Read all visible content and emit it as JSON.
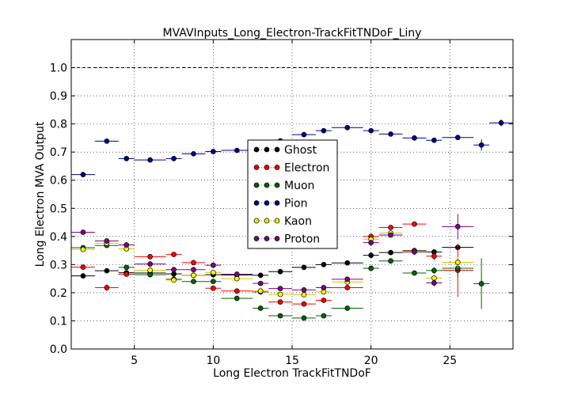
{
  "chart_data": {
    "type": "scatter",
    "title": "MVAVInputs_Long_Electron-TrackFitTNDoF_Liny",
    "xlabel": "Long Electron TrackFitTNDoF",
    "ylabel": "Long Electron MVA Output",
    "xlim": [
      1.0,
      29.0
    ],
    "ylim": [
      0.0,
      1.1
    ],
    "xticks": [
      5,
      10,
      15,
      20,
      25
    ],
    "xtick_labels": [
      "5",
      "10",
      "15",
      "20",
      "25"
    ],
    "yticks": [
      0.0,
      0.1,
      0.2,
      0.3,
      0.4,
      0.5,
      0.6,
      0.7,
      0.8,
      0.9,
      1.0
    ],
    "ytick_labels": [
      "0.0",
      "0.1",
      "0.2",
      "0.3",
      "0.4",
      "0.5",
      "0.6",
      "0.7",
      "0.8",
      "0.9",
      "1.0"
    ],
    "grid": true,
    "reference_line": 1.0,
    "legend_position": "center",
    "series": [
      {
        "name": "Ghost",
        "color": "#000000",
        "points": [
          {
            "x": 1.75,
            "xerr": 0.75,
            "y": 0.26,
            "yerr": 0.004
          },
          {
            "x": 3.25,
            "xerr": 0.75,
            "y": 0.278,
            "yerr": 0.004
          },
          {
            "x": 4.5,
            "xerr": 0.5,
            "y": 0.271,
            "yerr": 0.004
          },
          {
            "x": 6.0,
            "xerr": 1.0,
            "y": 0.27,
            "yerr": 0.004
          },
          {
            "x": 7.5,
            "xerr": 0.5,
            "y": 0.267,
            "yerr": 0.004
          },
          {
            "x": 8.75,
            "xerr": 0.75,
            "y": 0.262,
            "yerr": 0.004
          },
          {
            "x": 10.0,
            "xerr": 0.5,
            "y": 0.264,
            "yerr": 0.004
          },
          {
            "x": 11.5,
            "xerr": 1.0,
            "y": 0.263,
            "yerr": 0.004
          },
          {
            "x": 13.0,
            "xerr": 0.5,
            "y": 0.262,
            "yerr": 0.004
          },
          {
            "x": 14.25,
            "xerr": 0.75,
            "y": 0.275,
            "yerr": 0.004
          },
          {
            "x": 15.75,
            "xerr": 0.75,
            "y": 0.29,
            "yerr": 0.004
          },
          {
            "x": 17.0,
            "xerr": 0.5,
            "y": 0.3,
            "yerr": 0.004
          },
          {
            "x": 18.5,
            "xerr": 1.0,
            "y": 0.306,
            "yerr": 0.005
          },
          {
            "x": 20.0,
            "xerr": 0.5,
            "y": 0.333,
            "yerr": 0.005
          },
          {
            "x": 21.25,
            "xerr": 0.75,
            "y": 0.343,
            "yerr": 0.006
          },
          {
            "x": 22.75,
            "xerr": 0.75,
            "y": 0.35,
            "yerr": 0.006
          },
          {
            "x": 24.0,
            "xerr": 0.5,
            "y": 0.345,
            "yerr": 0.008
          },
          {
            "x": 25.5,
            "xerr": 1.0,
            "y": 0.361,
            "yerr": 0.012
          }
        ]
      },
      {
        "name": "Electron",
        "color": "#ff0000",
        "points": [
          {
            "x": 1.75,
            "xerr": 0.75,
            "y": 0.291,
            "yerr": 0.004
          },
          {
            "x": 3.25,
            "xerr": 0.75,
            "y": 0.218,
            "yerr": 0.012
          },
          {
            "x": 4.5,
            "xerr": 0.5,
            "y": 0.266,
            "yerr": 0.005
          },
          {
            "x": 6.0,
            "xerr": 1.0,
            "y": 0.328,
            "yerr": 0.005
          },
          {
            "x": 7.5,
            "xerr": 0.5,
            "y": 0.336,
            "yerr": 0.005
          },
          {
            "x": 8.75,
            "xerr": 0.75,
            "y": 0.307,
            "yerr": 0.005
          },
          {
            "x": 10.0,
            "xerr": 0.5,
            "y": 0.216,
            "yerr": 0.005
          },
          {
            "x": 11.5,
            "xerr": 1.0,
            "y": 0.206,
            "yerr": 0.005
          },
          {
            "x": 13.0,
            "xerr": 0.5,
            "y": 0.203,
            "yerr": 0.005
          },
          {
            "x": 14.25,
            "xerr": 0.75,
            "y": 0.167,
            "yerr": 0.005
          },
          {
            "x": 15.75,
            "xerr": 0.75,
            "y": 0.16,
            "yerr": 0.005
          },
          {
            "x": 17.0,
            "xerr": 0.5,
            "y": 0.173,
            "yerr": 0.005
          },
          {
            "x": 18.5,
            "xerr": 1.0,
            "y": 0.218,
            "yerr": 0.005
          },
          {
            "x": 20.0,
            "xerr": 0.5,
            "y": 0.4,
            "yerr": 0.006
          },
          {
            "x": 21.25,
            "xerr": 0.75,
            "y": 0.432,
            "yerr": 0.006
          },
          {
            "x": 22.75,
            "xerr": 0.75,
            "y": 0.444,
            "yerr": 0.007
          },
          {
            "x": 24.0,
            "xerr": 0.5,
            "y": 0.33,
            "yerr": 0.015
          },
          {
            "x": 25.5,
            "xerr": 1.0,
            "y": 0.28,
            "yerr": 0.095
          }
        ]
      },
      {
        "name": "Muon",
        "color": "#006400",
        "points": [
          {
            "x": 1.75,
            "xerr": 0.75,
            "y": 0.36,
            "yerr": 0.005
          },
          {
            "x": 3.25,
            "xerr": 0.75,
            "y": 0.368,
            "yerr": 0.005
          },
          {
            "x": 4.5,
            "xerr": 0.5,
            "y": 0.29,
            "yerr": 0.005
          },
          {
            "x": 6.0,
            "xerr": 1.0,
            "y": 0.264,
            "yerr": 0.005
          },
          {
            "x": 7.5,
            "xerr": 0.5,
            "y": 0.248,
            "yerr": 0.005
          },
          {
            "x": 8.75,
            "xerr": 0.75,
            "y": 0.24,
            "yerr": 0.005
          },
          {
            "x": 10.0,
            "xerr": 0.5,
            "y": 0.24,
            "yerr": 0.005
          },
          {
            "x": 11.5,
            "xerr": 1.0,
            "y": 0.18,
            "yerr": 0.005
          },
          {
            "x": 13.0,
            "xerr": 0.5,
            "y": 0.145,
            "yerr": 0.005
          },
          {
            "x": 14.25,
            "xerr": 0.75,
            "y": 0.118,
            "yerr": 0.005
          },
          {
            "x": 15.75,
            "xerr": 0.75,
            "y": 0.11,
            "yerr": 0.005
          },
          {
            "x": 17.0,
            "xerr": 0.5,
            "y": 0.118,
            "yerr": 0.005
          },
          {
            "x": 18.5,
            "xerr": 1.0,
            "y": 0.145,
            "yerr": 0.005
          },
          {
            "x": 20.0,
            "xerr": 0.5,
            "y": 0.287,
            "yerr": 0.006
          },
          {
            "x": 21.25,
            "xerr": 0.75,
            "y": 0.313,
            "yerr": 0.007
          },
          {
            "x": 22.75,
            "xerr": 0.75,
            "y": 0.27,
            "yerr": 0.007
          },
          {
            "x": 24.0,
            "xerr": 0.5,
            "y": 0.279,
            "yerr": 0.012
          },
          {
            "x": 25.5,
            "xerr": 1.0,
            "y": 0.287,
            "yerr": 0.03
          },
          {
            "x": 27.0,
            "xerr": 0.5,
            "y": 0.232,
            "yerr": 0.09
          }
        ]
      },
      {
        "name": "Pion",
        "color": "#00008b",
        "points": [
          {
            "x": 1.75,
            "xerr": 0.75,
            "y": 0.62,
            "yerr": 0.004
          },
          {
            "x": 3.25,
            "xerr": 0.75,
            "y": 0.739,
            "yerr": 0.004
          },
          {
            "x": 4.5,
            "xerr": 0.5,
            "y": 0.677,
            "yerr": 0.004
          },
          {
            "x": 6.0,
            "xerr": 1.0,
            "y": 0.672,
            "yerr": 0.004
          },
          {
            "x": 7.5,
            "xerr": 0.5,
            "y": 0.677,
            "yerr": 0.004
          },
          {
            "x": 8.75,
            "xerr": 0.75,
            "y": 0.694,
            "yerr": 0.004
          },
          {
            "x": 10.0,
            "xerr": 0.5,
            "y": 0.702,
            "yerr": 0.004
          },
          {
            "x": 11.5,
            "xerr": 1.0,
            "y": 0.706,
            "yerr": 0.004
          },
          {
            "x": 13.0,
            "xerr": 0.5,
            "y": 0.721,
            "yerr": 0.004
          },
          {
            "x": 14.25,
            "xerr": 0.75,
            "y": 0.74,
            "yerr": 0.004
          },
          {
            "x": 15.75,
            "xerr": 0.75,
            "y": 0.762,
            "yerr": 0.004
          },
          {
            "x": 17.0,
            "xerr": 0.5,
            "y": 0.776,
            "yerr": 0.004
          },
          {
            "x": 18.5,
            "xerr": 1.0,
            "y": 0.787,
            "yerr": 0.004
          },
          {
            "x": 20.0,
            "xerr": 0.5,
            "y": 0.776,
            "yerr": 0.004
          },
          {
            "x": 21.25,
            "xerr": 0.75,
            "y": 0.764,
            "yerr": 0.005
          },
          {
            "x": 22.75,
            "xerr": 0.75,
            "y": 0.75,
            "yerr": 0.005
          },
          {
            "x": 24.0,
            "xerr": 0.5,
            "y": 0.742,
            "yerr": 0.006
          },
          {
            "x": 25.5,
            "xerr": 1.0,
            "y": 0.752,
            "yerr": 0.007
          },
          {
            "x": 27.0,
            "xerr": 0.5,
            "y": 0.725,
            "yerr": 0.02
          },
          {
            "x": 28.25,
            "xerr": 0.75,
            "y": 0.804,
            "yerr": 0.012
          }
        ]
      },
      {
        "name": "Kaon",
        "color": "#ffff00",
        "points": [
          {
            "x": 1.75,
            "xerr": 0.75,
            "y": 0.354,
            "yerr": 0.005
          },
          {
            "x": 3.25,
            "xerr": 0.75,
            "y": 0.376,
            "yerr": 0.005
          },
          {
            "x": 4.5,
            "xerr": 0.5,
            "y": 0.356,
            "yerr": 0.005
          },
          {
            "x": 6.0,
            "xerr": 1.0,
            "y": 0.28,
            "yerr": 0.005
          },
          {
            "x": 7.5,
            "xerr": 0.5,
            "y": 0.245,
            "yerr": 0.005
          },
          {
            "x": 8.75,
            "xerr": 0.75,
            "y": 0.262,
            "yerr": 0.005
          },
          {
            "x": 10.0,
            "xerr": 0.5,
            "y": 0.272,
            "yerr": 0.005
          },
          {
            "x": 11.5,
            "xerr": 1.0,
            "y": 0.25,
            "yerr": 0.005
          },
          {
            "x": 13.0,
            "xerr": 0.5,
            "y": 0.206,
            "yerr": 0.005
          },
          {
            "x": 14.25,
            "xerr": 0.75,
            "y": 0.194,
            "yerr": 0.005
          },
          {
            "x": 15.75,
            "xerr": 0.75,
            "y": 0.193,
            "yerr": 0.005
          },
          {
            "x": 17.0,
            "xerr": 0.5,
            "y": 0.203,
            "yerr": 0.005
          },
          {
            "x": 18.5,
            "xerr": 1.0,
            "y": 0.238,
            "yerr": 0.005
          },
          {
            "x": 20.0,
            "xerr": 0.5,
            "y": 0.39,
            "yerr": 0.006
          },
          {
            "x": 21.25,
            "xerr": 0.75,
            "y": 0.412,
            "yerr": 0.006
          },
          {
            "x": 22.75,
            "xerr": 0.75,
            "y": 0.348,
            "yerr": 0.007
          },
          {
            "x": 24.0,
            "xerr": 0.5,
            "y": 0.252,
            "yerr": 0.01
          },
          {
            "x": 25.5,
            "xerr": 1.0,
            "y": 0.308,
            "yerr": 0.02
          }
        ]
      },
      {
        "name": "Proton",
        "color": "#800080",
        "points": [
          {
            "x": 1.75,
            "xerr": 0.75,
            "y": 0.415,
            "yerr": 0.005
          },
          {
            "x": 3.25,
            "xerr": 0.75,
            "y": 0.384,
            "yerr": 0.005
          },
          {
            "x": 4.5,
            "xerr": 0.5,
            "y": 0.37,
            "yerr": 0.005
          },
          {
            "x": 6.0,
            "xerr": 1.0,
            "y": 0.302,
            "yerr": 0.005
          },
          {
            "x": 7.5,
            "xerr": 0.5,
            "y": 0.282,
            "yerr": 0.005
          },
          {
            "x": 8.75,
            "xerr": 0.75,
            "y": 0.282,
            "yerr": 0.005
          },
          {
            "x": 10.0,
            "xerr": 0.5,
            "y": 0.298,
            "yerr": 0.005
          },
          {
            "x": 11.5,
            "xerr": 1.0,
            "y": 0.266,
            "yerr": 0.005
          },
          {
            "x": 13.0,
            "xerr": 0.5,
            "y": 0.233,
            "yerr": 0.005
          },
          {
            "x": 14.25,
            "xerr": 0.75,
            "y": 0.215,
            "yerr": 0.005
          },
          {
            "x": 15.75,
            "xerr": 0.75,
            "y": 0.21,
            "yerr": 0.005
          },
          {
            "x": 17.0,
            "xerr": 0.5,
            "y": 0.218,
            "yerr": 0.005
          },
          {
            "x": 18.5,
            "xerr": 1.0,
            "y": 0.248,
            "yerr": 0.005
          },
          {
            "x": 20.0,
            "xerr": 0.5,
            "y": 0.378,
            "yerr": 0.008
          },
          {
            "x": 21.25,
            "xerr": 0.75,
            "y": 0.405,
            "yerr": 0.008
          },
          {
            "x": 22.75,
            "xerr": 0.75,
            "y": 0.345,
            "yerr": 0.01
          },
          {
            "x": 24.0,
            "xerr": 0.5,
            "y": 0.235,
            "yerr": 0.012
          },
          {
            "x": 25.5,
            "xerr": 1.0,
            "y": 0.435,
            "yerr": 0.045
          }
        ]
      }
    ]
  }
}
